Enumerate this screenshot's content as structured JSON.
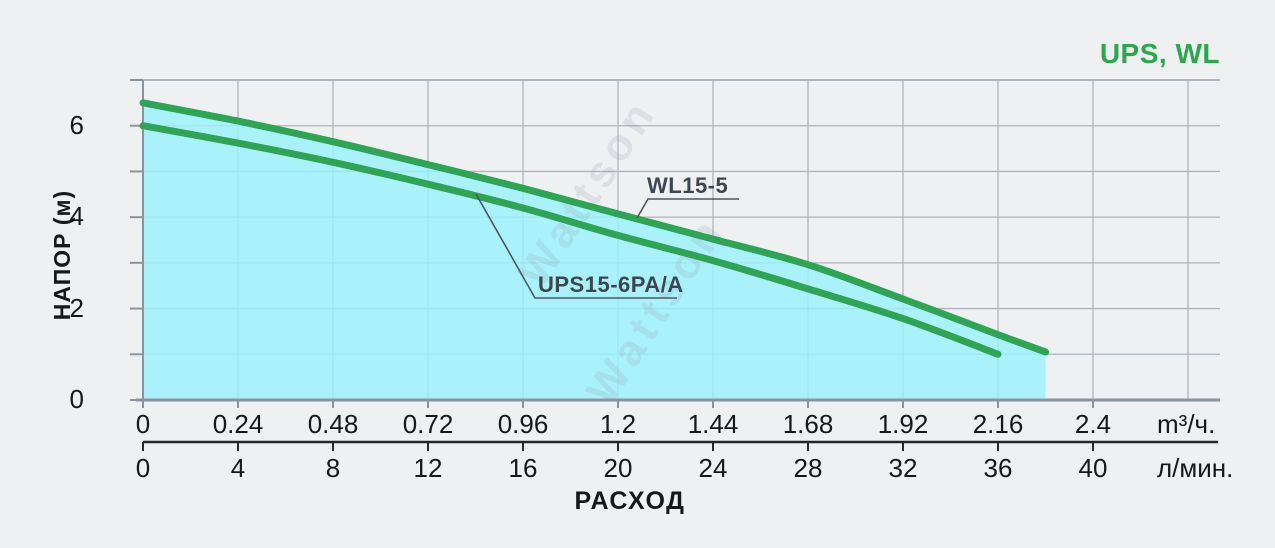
{
  "title": "UPS, WL",
  "watermark": "Wattson",
  "colors": {
    "title_green": "#2aa84d",
    "curve_green": "#2fa452",
    "fill_cyan": "#99f2fc",
    "grid": "#aeb5bc",
    "plot_top_border": "#9aa2aa",
    "axis": "#8b949c",
    "axis_secondary": "#23282d",
    "text_dark": "#15181b",
    "callout_text": "#3d4751",
    "callout_line": "#4d5761",
    "background": "#eef0f2"
  },
  "chart_data": {
    "type": "line",
    "title": "UPS, WL",
    "xlabel": "РАСХОД",
    "ylabel": "НАПОР (м)",
    "grid": true,
    "legend_position": "none",
    "x_axis_primary": {
      "unit": "m³/ч.",
      "ticks": [
        "0",
        "0.24",
        "0.48",
        "0.72",
        "0.96",
        "1.2",
        "1.44",
        "1.68",
        "1.92",
        "2.16",
        "2.4"
      ],
      "range": [
        0,
        2.4
      ]
    },
    "x_axis_secondary": {
      "unit": "л/мин.",
      "ticks": [
        "0",
        "4",
        "8",
        "12",
        "16",
        "20",
        "24",
        "28",
        "32",
        "36",
        "40"
      ],
      "range": [
        0,
        40
      ]
    },
    "y_axis": {
      "ticks": [
        "0",
        "2",
        "4",
        "6"
      ],
      "range": [
        0,
        7
      ],
      "gridline_step": 1
    },
    "series": [
      {
        "name": "WL15-5",
        "points_m3h_head": [
          [
            0,
            6.5
          ],
          [
            0.24,
            6.1
          ],
          [
            0.48,
            5.65
          ],
          [
            0.72,
            5.15
          ],
          [
            0.96,
            4.63
          ],
          [
            1.2,
            4.07
          ],
          [
            1.44,
            3.52
          ],
          [
            1.68,
            2.96
          ],
          [
            1.92,
            2.21
          ],
          [
            2.16,
            1.43
          ],
          [
            2.28,
            1.05
          ]
        ]
      },
      {
        "name": "UPS15-6PA/A",
        "points_m3h_head": [
          [
            0,
            6.0
          ],
          [
            0.24,
            5.62
          ],
          [
            0.48,
            5.2
          ],
          [
            0.72,
            4.72
          ],
          [
            0.96,
            4.2
          ],
          [
            1.2,
            3.6
          ],
          [
            1.44,
            3.05
          ],
          [
            1.68,
            2.43
          ],
          [
            1.92,
            1.78
          ],
          [
            2.16,
            1.0
          ]
        ]
      }
    ],
    "filled_area_under": "WL15-5"
  }
}
